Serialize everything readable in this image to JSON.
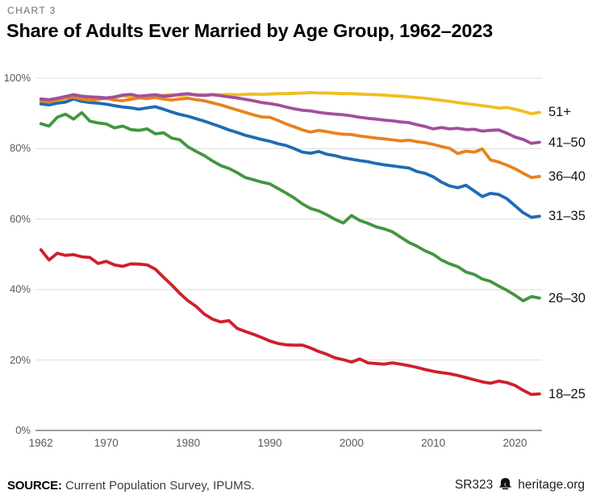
{
  "kicker": "CHART 3",
  "title": "Share of Adults Ever Married by Age Group, 1962–2023",
  "footer": {
    "source_label": "SOURCE:",
    "source_text": " Current Population Survey, IPUMS.",
    "report_id": "SR323",
    "brand_icon": "liberty-bell-icon",
    "site": "heritage.org"
  },
  "colors": {
    "grid": "#dcdcdc",
    "axis": "#9e9e9e",
    "tick_text": "#595959",
    "kicker_text": "#6e6e6e"
  },
  "chart_data": {
    "type": "line",
    "title": "Share of Adults Ever Married by Age Group, 1962–2023",
    "xlabel": "",
    "ylabel": "",
    "ylim": [
      0,
      100
    ],
    "grid": "horizontal",
    "legend_position": "right-end-labels",
    "x": [
      1962,
      1963,
      1964,
      1965,
      1966,
      1967,
      1968,
      1969,
      1970,
      1971,
      1972,
      1973,
      1974,
      1975,
      1976,
      1977,
      1978,
      1979,
      1980,
      1981,
      1982,
      1983,
      1984,
      1985,
      1986,
      1987,
      1988,
      1989,
      1990,
      1991,
      1992,
      1993,
      1994,
      1995,
      1996,
      1997,
      1998,
      1999,
      2000,
      2001,
      2002,
      2003,
      2004,
      2005,
      2006,
      2007,
      2008,
      2009,
      2010,
      2011,
      2012,
      2013,
      2014,
      2015,
      2016,
      2017,
      2018,
      2019,
      2020,
      2021,
      2022,
      2023
    ],
    "x_ticks": [
      1962,
      1970,
      1980,
      1990,
      2000,
      2010,
      2020
    ],
    "y_ticks": [
      {
        "value": 100,
        "label": "100%"
      },
      {
        "value": 80,
        "label": "80%"
      },
      {
        "value": 60,
        "label": "60%"
      },
      {
        "value": 40,
        "label": "40%"
      },
      {
        "value": 20,
        "label": "20%"
      },
      {
        "value": 0,
        "label": "0%"
      }
    ],
    "series": [
      {
        "name": "51+",
        "color": "#EFBE1F",
        "values": [
          93.3,
          93.4,
          93.6,
          93.8,
          94.2,
          94.0,
          94.2,
          94.3,
          94.2,
          94.5,
          95.0,
          94.6,
          94.8,
          95.0,
          94.9,
          95.1,
          95.4,
          95.1,
          95.3,
          95.4,
          95.3,
          95.4,
          95.3,
          95.4,
          95.3,
          95.4,
          95.5,
          95.4,
          95.5,
          95.6,
          95.6,
          95.7,
          95.8,
          95.9,
          95.8,
          95.8,
          95.7,
          95.6,
          95.6,
          95.5,
          95.4,
          95.3,
          95.2,
          95.0,
          94.9,
          94.7,
          94.5,
          94.3,
          94.0,
          93.7,
          93.4,
          93.1,
          92.8,
          92.5,
          92.2,
          91.9,
          91.5,
          91.7,
          91.2,
          90.6,
          89.9,
          90.3
        ]
      },
      {
        "name": "41–50",
        "color": "#A24E9D",
        "values": [
          94.1,
          93.9,
          94.3,
          94.8,
          95.3,
          94.9,
          94.7,
          94.6,
          94.4,
          94.7,
          95.2,
          95.4,
          94.9,
          95.1,
          95.3,
          94.9,
          95.0,
          95.4,
          95.6,
          95.2,
          95.1,
          95.3,
          95.0,
          94.7,
          94.4,
          94.0,
          93.6,
          93.1,
          92.8,
          92.4,
          91.8,
          91.3,
          90.9,
          90.7,
          90.3,
          90.0,
          89.8,
          89.6,
          89.3,
          88.9,
          88.6,
          88.4,
          88.1,
          87.9,
          87.6,
          87.4,
          86.8,
          86.3,
          85.6,
          86.0,
          85.6,
          85.8,
          85.4,
          85.5,
          85.0,
          85.2,
          85.3,
          84.4,
          83.3,
          82.6,
          81.5,
          81.8
        ]
      },
      {
        "name": "36–40",
        "color": "#E8821E",
        "values": [
          93.6,
          93.3,
          93.9,
          94.5,
          94.6,
          94.1,
          93.7,
          94.0,
          94.3,
          93.8,
          93.6,
          94.0,
          94.4,
          94.2,
          94.5,
          94.1,
          93.8,
          94.1,
          94.3,
          93.9,
          93.6,
          93.0,
          92.4,
          91.7,
          91.0,
          90.3,
          89.6,
          89.0,
          88.9,
          88.0,
          87.0,
          86.2,
          85.3,
          84.7,
          85.2,
          84.8,
          84.4,
          84.1,
          84.0,
          83.6,
          83.3,
          83.0,
          82.8,
          82.5,
          82.2,
          82.4,
          82.0,
          81.7,
          81.2,
          80.6,
          80.1,
          78.6,
          79.3,
          79.0,
          79.9,
          76.8,
          76.2,
          75.3,
          74.3,
          73.0,
          71.8,
          72.1
        ]
      },
      {
        "name": "31–35",
        "color": "#1F6CB4",
        "values": [
          92.7,
          92.4,
          92.9,
          93.2,
          94.1,
          93.4,
          93.1,
          92.9,
          92.6,
          92.2,
          91.8,
          91.6,
          91.2,
          91.6,
          91.9,
          91.2,
          90.4,
          89.7,
          89.2,
          88.5,
          87.8,
          87.0,
          86.2,
          85.3,
          84.6,
          83.8,
          83.2,
          82.6,
          82.1,
          81.4,
          80.9,
          80.0,
          79.0,
          78.7,
          79.2,
          78.4,
          78.0,
          77.4,
          77.0,
          76.6,
          76.3,
          75.8,
          75.4,
          75.1,
          74.8,
          74.5,
          73.5,
          73.0,
          72.0,
          70.5,
          69.4,
          68.9,
          69.6,
          68.0,
          66.4,
          67.3,
          67.0,
          65.8,
          63.8,
          61.8,
          60.5,
          60.8
        ]
      },
      {
        "name": "26–30",
        "color": "#42963F",
        "values": [
          87.1,
          86.4,
          88.9,
          89.8,
          88.4,
          90.2,
          87.8,
          87.3,
          87.0,
          85.9,
          86.4,
          85.4,
          85.2,
          85.6,
          84.2,
          84.5,
          83.0,
          82.5,
          80.5,
          79.2,
          78.0,
          76.5,
          75.2,
          74.4,
          73.2,
          71.8,
          71.2,
          70.5,
          70.0,
          68.7,
          67.4,
          66.0,
          64.3,
          63.0,
          62.3,
          61.2,
          59.9,
          58.9,
          61.0,
          59.6,
          58.8,
          57.8,
          57.2,
          56.4,
          54.9,
          53.4,
          52.3,
          51.0,
          50.0,
          48.4,
          47.3,
          46.5,
          45.0,
          44.3,
          43.0,
          42.3,
          41.0,
          39.8,
          38.4,
          36.8,
          38.0,
          37.6
        ]
      },
      {
        "name": "18–25",
        "color": "#D01F2B",
        "values": [
          51.3,
          48.4,
          50.3,
          49.7,
          49.9,
          49.3,
          49.1,
          47.4,
          48.0,
          47.0,
          46.6,
          47.3,
          47.2,
          47.0,
          45.8,
          43.5,
          41.3,
          38.9,
          36.8,
          35.2,
          33.0,
          31.6,
          30.8,
          31.2,
          29.0,
          28.1,
          27.3,
          26.4,
          25.4,
          24.7,
          24.3,
          24.2,
          24.2,
          23.4,
          22.4,
          21.6,
          20.6,
          20.1,
          19.4,
          20.3,
          19.2,
          19.0,
          18.8,
          19.2,
          18.8,
          18.4,
          17.9,
          17.3,
          16.8,
          16.4,
          16.1,
          15.6,
          15.0,
          14.4,
          13.8,
          13.4,
          14.0,
          13.6,
          12.8,
          11.4,
          10.2,
          10.4
        ]
      }
    ]
  }
}
